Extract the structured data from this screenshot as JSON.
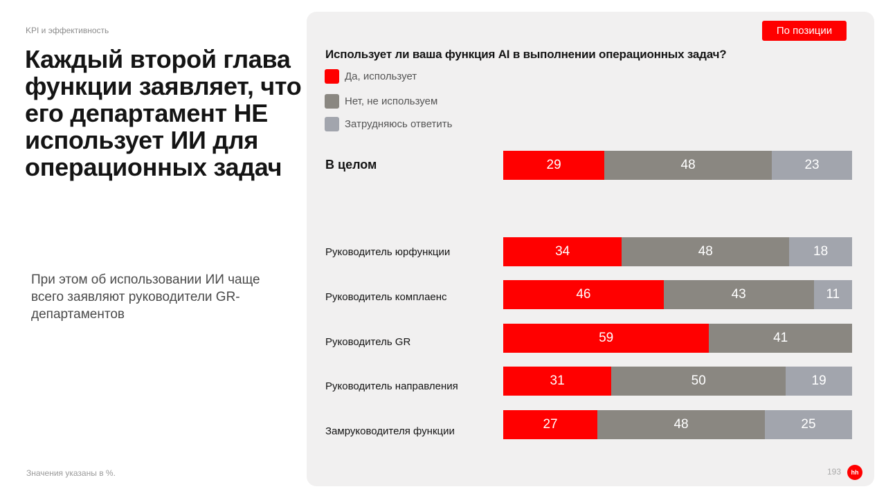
{
  "section_label": "KPI и эффективность",
  "headline": "Каждый второй глава функции заявляет, что его департамент НЕ использует ИИ для операционных задач",
  "subtext": "При этом об использовании ИИ чаще всего заявляют руководители GR-департаментов",
  "footnote": "Значения указаны в %.",
  "filter_button": "По позиции",
  "page_number": "193",
  "logo_text": "hh",
  "colors": {
    "yes": "#ff0000",
    "no": "#8a8781",
    "unsure": "#a2a5ad"
  },
  "chart_data": {
    "type": "bar",
    "orientation": "horizontal",
    "stacked": true,
    "title": "Использует ли ваша функция AI в выполнении операционных задач?",
    "categories": [
      "В целом",
      "Руководитель юрфункции",
      "Руководитель комплаенс",
      "Руководитель GR",
      "Руководитель направления",
      "Замруководителя функции"
    ],
    "series": [
      {
        "name": "Да, использует",
        "values": [
          29,
          34,
          46,
          59,
          31,
          27
        ]
      },
      {
        "name": "Нет, не используем",
        "values": [
          48,
          48,
          43,
          41,
          50,
          48
        ]
      },
      {
        "name": "Затрудняюсь ответить",
        "values": [
          23,
          18,
          11,
          0,
          19,
          25
        ]
      }
    ],
    "xlim": [
      0,
      100
    ],
    "legend": "top-left"
  }
}
